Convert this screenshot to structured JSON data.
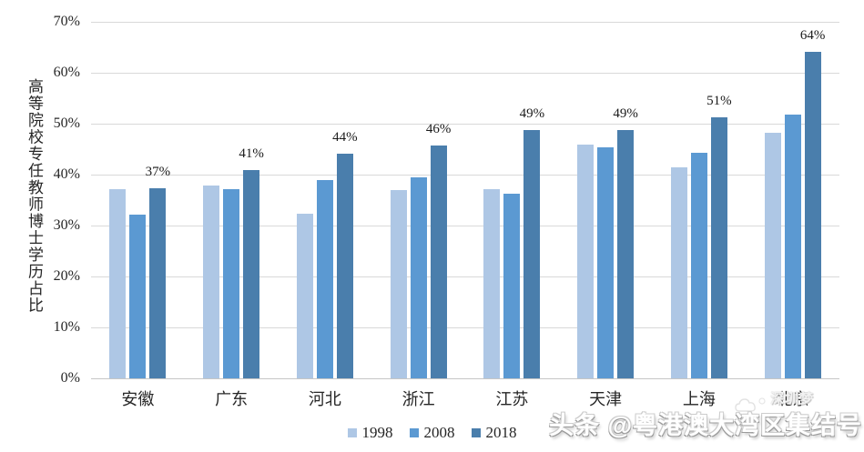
{
  "chart_data": {
    "type": "bar",
    "title": "",
    "ylabel": "高等院校专任教师博士学历占比",
    "xlabel": "",
    "categories": [
      "安徽",
      "广东",
      "河北",
      "浙江",
      "江苏",
      "天津",
      "上海",
      "北京"
    ],
    "series": [
      {
        "name": "1998",
        "color": "#AEC7E5",
        "values": [
          37.2,
          37.8,
          32.4,
          36.9,
          37.2,
          45.9,
          41.5,
          48.2
        ]
      },
      {
        "name": "2008",
        "color": "#5B99D2",
        "values": [
          32.2,
          37.1,
          39.0,
          39.4,
          36.3,
          45.3,
          44.3,
          51.8
        ]
      },
      {
        "name": "2018",
        "color": "#4A7EAC",
        "values": [
          37.4,
          40.9,
          44.1,
          45.8,
          48.8,
          48.8,
          51.2,
          64.1
        ],
        "labels": [
          "37%",
          "41%",
          "44%",
          "46%",
          "49%",
          "49%",
          "51%",
          "64%"
        ]
      }
    ],
    "ylim": [
      0,
      70
    ],
    "yticks": [
      "0%",
      "10%",
      "20%",
      "30%",
      "40%",
      "50%",
      "60%",
      "70%"
    ],
    "grid": true,
    "legend_position": "bottom",
    "grid_color": "#d9d9d9"
  },
  "footer": {
    "text": "头条 @粤港澳大湾区集结号"
  },
  "watermark": {
    "text": "深圳梦"
  }
}
